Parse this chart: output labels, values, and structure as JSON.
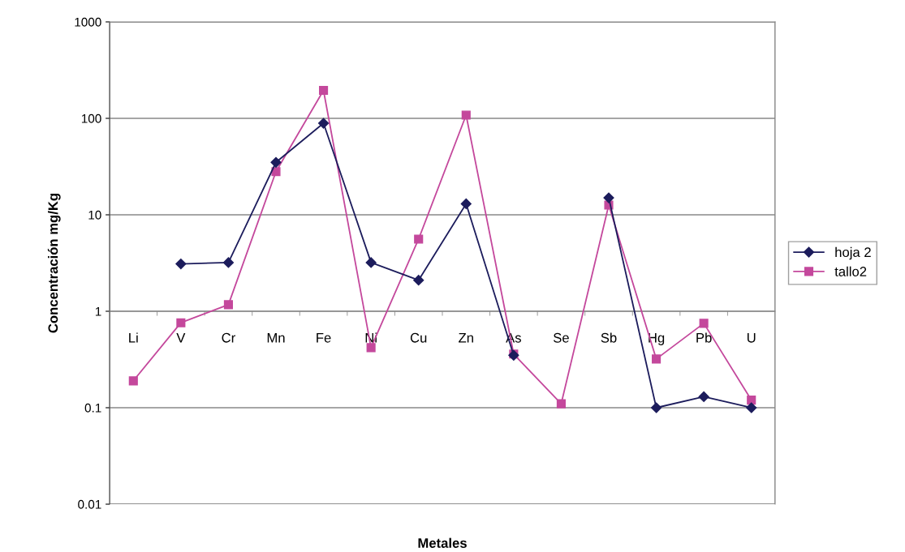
{
  "chart_data": {
    "type": "line",
    "xlabel": "Metales",
    "ylabel": "Concentración mg/Kg",
    "categories": [
      "Li",
      "V",
      "Cr",
      "Mn",
      "Fe",
      "Ni",
      "Cu",
      "Zn",
      "As",
      "Se",
      "Sb",
      "Hg",
      "Pb",
      "U"
    ],
    "series": [
      {
        "name": "hoja 2",
        "color": "#1c1c5c",
        "marker": "diamond",
        "values": [
          null,
          3.1,
          3.2,
          35,
          89,
          3.2,
          2.1,
          13,
          0.35,
          null,
          15,
          0.1,
          0.13,
          0.1
        ]
      },
      {
        "name": "tallo2",
        "color": "#c4489c",
        "marker": "square",
        "values": [
          0.19,
          0.76,
          1.17,
          28,
          195,
          0.42,
          5.6,
          108,
          0.36,
          0.11,
          12.6,
          0.32,
          0.75,
          0.12
        ]
      }
    ],
    "log": true,
    "ylim": [
      0.01,
      1000
    ],
    "yticks": [
      0.01,
      0.1,
      1,
      10,
      100,
      1000
    ],
    "grid": "y",
    "legend": "right"
  }
}
